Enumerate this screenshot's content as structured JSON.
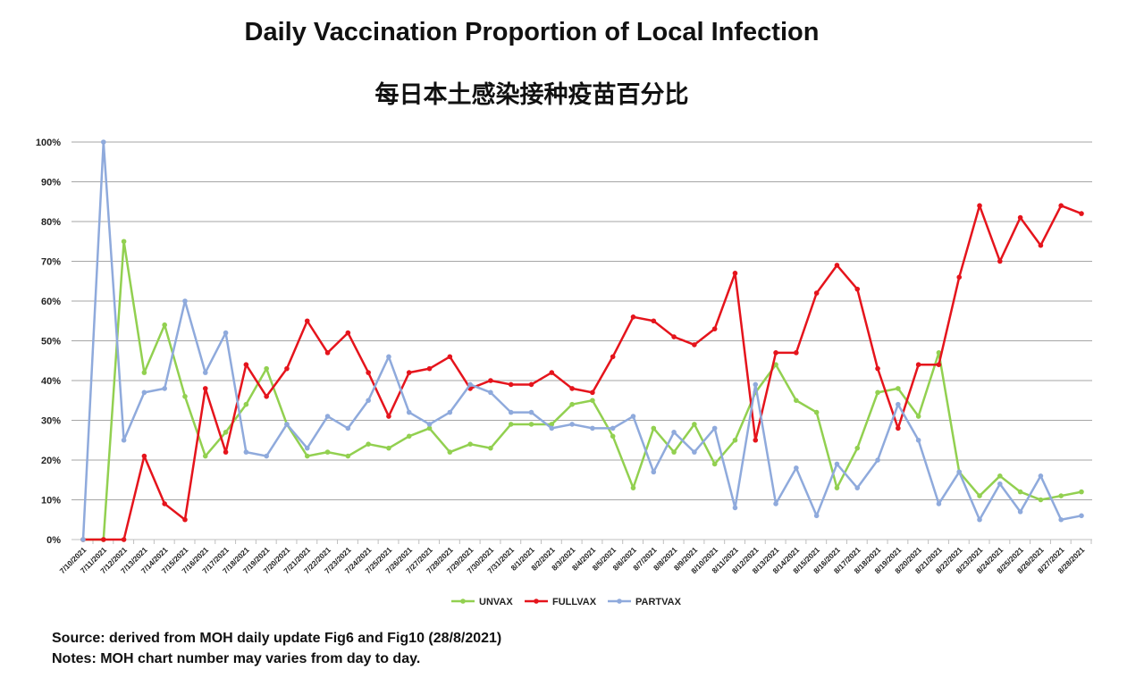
{
  "chart_data": {
    "type": "line",
    "title": "Daily Vaccination Proportion of Local Infection",
    "subtitle": "每日本土感染接种疫苗百分比",
    "xlabel": "",
    "ylabel": "",
    "ylim": [
      0,
      100
    ],
    "yticks": [
      "0%",
      "10%",
      "20%",
      "30%",
      "40%",
      "50%",
      "60%",
      "70%",
      "80%",
      "90%",
      "100%"
    ],
    "grid": true,
    "legend_position": "bottom",
    "x": [
      "7/10/2021",
      "7/11/2021",
      "7/12/2021",
      "7/13/2021",
      "7/14/2021",
      "7/15/2021",
      "7/16/2021",
      "7/17/2021",
      "7/18/2021",
      "7/19/2021",
      "7/20/2021",
      "7/21/2021",
      "7/22/2021",
      "7/23/2021",
      "7/24/2021",
      "7/25/2021",
      "7/26/2021",
      "7/27/2021",
      "7/28/2021",
      "7/29/2021",
      "7/30/2021",
      "7/31/2021",
      "8/1/2021",
      "8/2/2021",
      "8/3/2021",
      "8/4/2021",
      "8/5/2021",
      "8/6/2021",
      "8/7/2021",
      "8/8/2021",
      "8/9/2021",
      "8/10/2021",
      "8/11/2021",
      "8/12/2021",
      "8/13/2021",
      "8/14/2021",
      "8/15/2021",
      "8/16/2021",
      "8/17/2021",
      "8/18/2021",
      "8/19/2021",
      "8/20/2021",
      "8/21/2021",
      "8/22/2021",
      "8/23/2021",
      "8/24/2021",
      "8/25/2021",
      "8/26/2021",
      "8/27/2021",
      "8/28/2021"
    ],
    "series": [
      {
        "name": "UNVAX",
        "color": "#92d050",
        "values": [
          0,
          0,
          75,
          42,
          54,
          36,
          21,
          27,
          34,
          43,
          29,
          21,
          22,
          21,
          24,
          23,
          26,
          28,
          22,
          24,
          23,
          29,
          29,
          29,
          34,
          35,
          26,
          13,
          28,
          22,
          29,
          19,
          25,
          37,
          44,
          35,
          32,
          13,
          23,
          37,
          38,
          31,
          47,
          17,
          11,
          16,
          12,
          10,
          11,
          12
        ]
      },
      {
        "name": "FULLVAX",
        "color": "#e5141c",
        "values": [
          0,
          0,
          0,
          21,
          9,
          5,
          38,
          22,
          44,
          36,
          43,
          55,
          47,
          52,
          42,
          31,
          42,
          43,
          46,
          38,
          40,
          39,
          39,
          42,
          38,
          37,
          46,
          56,
          55,
          51,
          49,
          53,
          67,
          25,
          47,
          47,
          62,
          69,
          63,
          43,
          28,
          44,
          44,
          66,
          84,
          70,
          81,
          74,
          84,
          82
        ]
      },
      {
        "name": "PARTVAX",
        "color": "#8faadc",
        "values": [
          0,
          100,
          25,
          37,
          38,
          60,
          42,
          52,
          22,
          21,
          29,
          23,
          31,
          28,
          35,
          46,
          32,
          29,
          32,
          39,
          37,
          32,
          32,
          28,
          29,
          28,
          28,
          31,
          17,
          27,
          22,
          28,
          8,
          39,
          9,
          18,
          6,
          19,
          13,
          20,
          34,
          25,
          9,
          17,
          5,
          14,
          7,
          16,
          5,
          6
        ]
      }
    ]
  },
  "notes": {
    "source": "Source:  derived from MOH daily update Fig6 and Fig10 (28/8/2021)",
    "notes": "Notes: MOH chart number may varies from day to day."
  }
}
